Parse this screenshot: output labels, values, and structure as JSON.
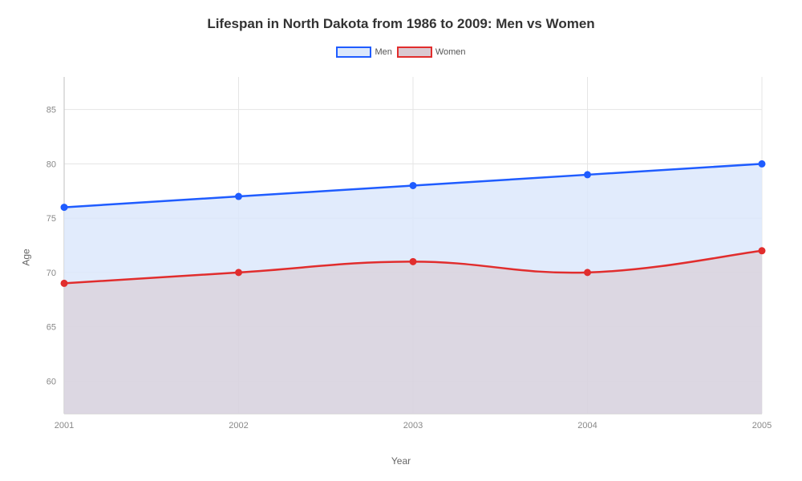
{
  "chart": {
    "type": "line-area",
    "title": "Lifespan in North Dakota from 1986 to 2009: Men vs Women",
    "title_fontsize": 17,
    "title_weight": 600,
    "background_color": "#ffffff",
    "grid_color": "#e5e5e5",
    "axis_color": "#bfbfbf",
    "tick_label_color": "#888888",
    "tick_fontsize": 11,
    "x_axis": {
      "label": "Year",
      "label_fontsize": 12,
      "categories": [
        "2001",
        "2002",
        "2003",
        "2004",
        "2005"
      ]
    },
    "y_axis": {
      "label": "Age",
      "label_fontsize": 12,
      "min": 57,
      "max": 88,
      "ticks": [
        60,
        65,
        70,
        75,
        80,
        85
      ]
    },
    "legend": {
      "position": "top-center",
      "swatch_width": 44,
      "swatch_height": 14,
      "label_fontsize": 11
    },
    "series": [
      {
        "name": "Men",
        "values": [
          76,
          77,
          78,
          79,
          80
        ],
        "line_color": "#1f5cff",
        "fill_color": "#dce8fb",
        "fill_opacity": 0.85,
        "line_width": 2.5,
        "marker": {
          "shape": "circle",
          "size": 4,
          "fill": "#1f5cff",
          "stroke": "#1f5cff"
        }
      },
      {
        "name": "Women",
        "values": [
          69,
          70,
          71,
          70,
          72
        ],
        "line_color": "#e12d2d",
        "fill_color": "#d9c9d1",
        "fill_opacity": 0.6,
        "line_width": 2.5,
        "marker": {
          "shape": "circle",
          "size": 4,
          "fill": "#e12d2d",
          "stroke": "#e12d2d"
        }
      }
    ],
    "smoothing": 0.4
  }
}
